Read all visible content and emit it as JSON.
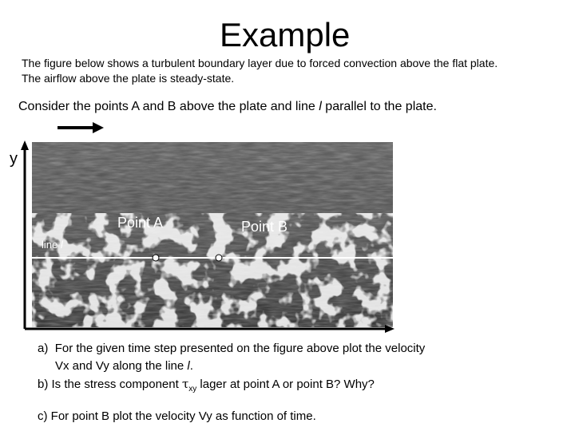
{
  "header": {
    "title": "Example"
  },
  "intro": [
    "The figure below shows a turbulent boundary layer due to forced convection above the flat plate.",
    "The airflow above the plate is steady-state."
  ],
  "prompt": {
    "before": "Consider the points A and B above the plate and line ",
    "symbol": "l",
    "after": " parallel to the plate."
  },
  "figure": {
    "axis_label": "y",
    "point_a": "Point A",
    "point_b": "Point B",
    "line_label": "line",
    "line_symbol": "l"
  },
  "questions": {
    "a": {
      "marker": "a)",
      "line1": "For the given time step presented on the figure above plot the velocity",
      "line2": "Vx and Vy along the line ",
      "symbol": "l",
      "end": "."
    },
    "b": {
      "marker": "b)",
      "before": "Is the stress component ",
      "tau": "τ",
      "sub": "xy",
      "after": " lager at point A or point B?  Why?"
    },
    "c": {
      "marker": "c)",
      "text": "For point B plot the velocity Vy as function of time."
    }
  }
}
